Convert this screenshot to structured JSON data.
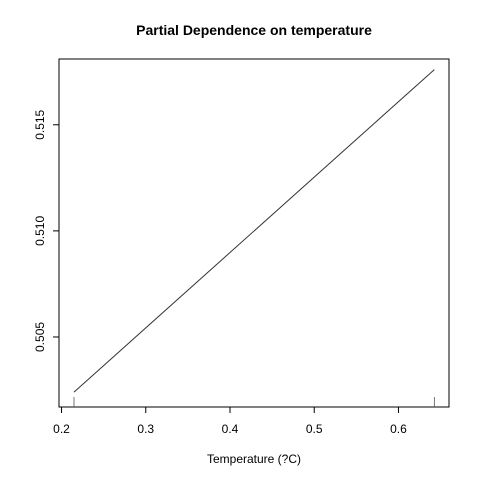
{
  "chart_data": {
    "type": "line",
    "title": "Partial Dependence on temperature",
    "xlabel": "Temperature (?C)",
    "ylabel": "",
    "xlim": [
      0.197,
      0.66
    ],
    "ylim": [
      0.5017,
      0.5181
    ],
    "x_ticks": [
      {
        "value": 0.2,
        "label": "0.2"
      },
      {
        "value": 0.3,
        "label": "0.3"
      },
      {
        "value": 0.4,
        "label": "0.4"
      },
      {
        "value": 0.5,
        "label": "0.5"
      },
      {
        "value": 0.6,
        "label": "0.6"
      }
    ],
    "y_ticks": [
      {
        "value": 0.505,
        "label": "0.505"
      },
      {
        "value": 0.51,
        "label": "0.510"
      },
      {
        "value": 0.515,
        "label": "0.515"
      }
    ],
    "series": [
      {
        "x": [
          0.2148,
          0.6426
        ],
        "y": [
          0.5024,
          0.5176
        ]
      }
    ],
    "rug": [
      0.2148,
      0.6426
    ],
    "grid": false,
    "legend": "none",
    "line_color": "#333333"
  }
}
